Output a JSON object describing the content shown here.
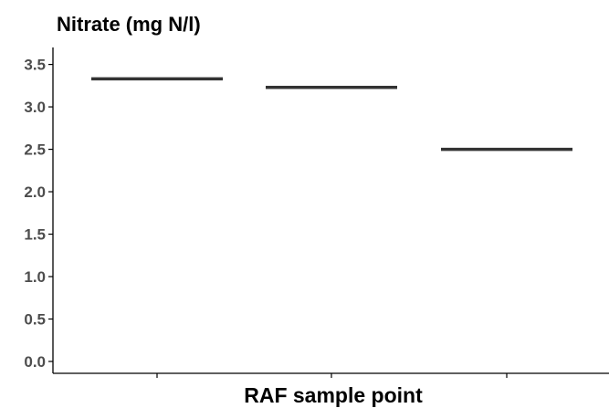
{
  "chart_data": {
    "type": "line",
    "title": "",
    "xlabel": "RAF sample point",
    "ylabel": "Nitrate (mg N/l)",
    "ylim": [
      0,
      3.7
    ],
    "y_ticks": [
      "0.0",
      "0.5",
      "1.0",
      "1.5",
      "2.0",
      "2.5",
      "3.0",
      "3.5"
    ],
    "categories": [
      "",
      "",
      ""
    ],
    "series": [
      {
        "values": [
          3.33,
          3.23,
          2.5
        ]
      }
    ],
    "grid": false,
    "legend": "none",
    "mark_color": "#333333",
    "axis_color": "#000000",
    "tick_label_color": "#4d4d4d"
  }
}
